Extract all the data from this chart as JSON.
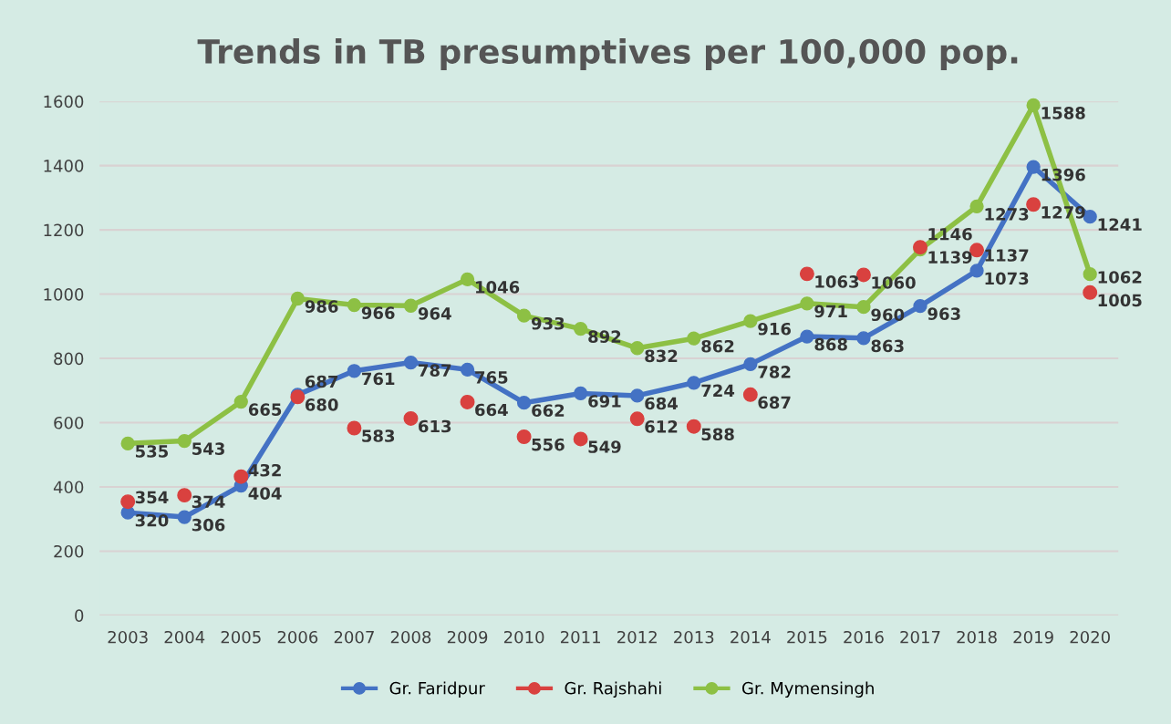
{
  "chart_data": {
    "type": "line",
    "title": "Trends in TB presumptives per 100,000 pop.",
    "categories": [
      "2003",
      "2004",
      "2005",
      "2006",
      "2007",
      "2008",
      "2009",
      "2010",
      "2011",
      "2012",
      "2013",
      "2014",
      "2015",
      "2016",
      "2017",
      "2018",
      "2019",
      "2020"
    ],
    "series": [
      {
        "name": "Gr. Faridpur",
        "color": "#4472c4",
        "values": [
          320,
          306,
          404,
          687,
          761,
          787,
          765,
          662,
          691,
          684,
          724,
          782,
          868,
          863,
          963,
          1073,
          1396,
          1241
        ]
      },
      {
        "name": "Gr. Rajshahi",
        "color": "#d9413f",
        "type": "scatter",
        "values": [
          354,
          374,
          432,
          680,
          583,
          613,
          664,
          556,
          549,
          612,
          588,
          687,
          1063,
          1060,
          1146,
          1137,
          1279,
          1005
        ]
      },
      {
        "name": "Gr. Mymensingh",
        "color": "#8dc044",
        "values": [
          535,
          543,
          665,
          986,
          966,
          964,
          1046,
          933,
          892,
          832,
          862,
          916,
          971,
          960,
          1139,
          1273,
          1588,
          1062
        ]
      }
    ],
    "ylim": [
      0,
      1600
    ],
    "yticks": [
      0,
      200,
      400,
      600,
      800,
      1000,
      1200,
      1400,
      1600
    ],
    "grid": "y",
    "legend": "bottom",
    "marker": "circle",
    "data_labels": true
  }
}
